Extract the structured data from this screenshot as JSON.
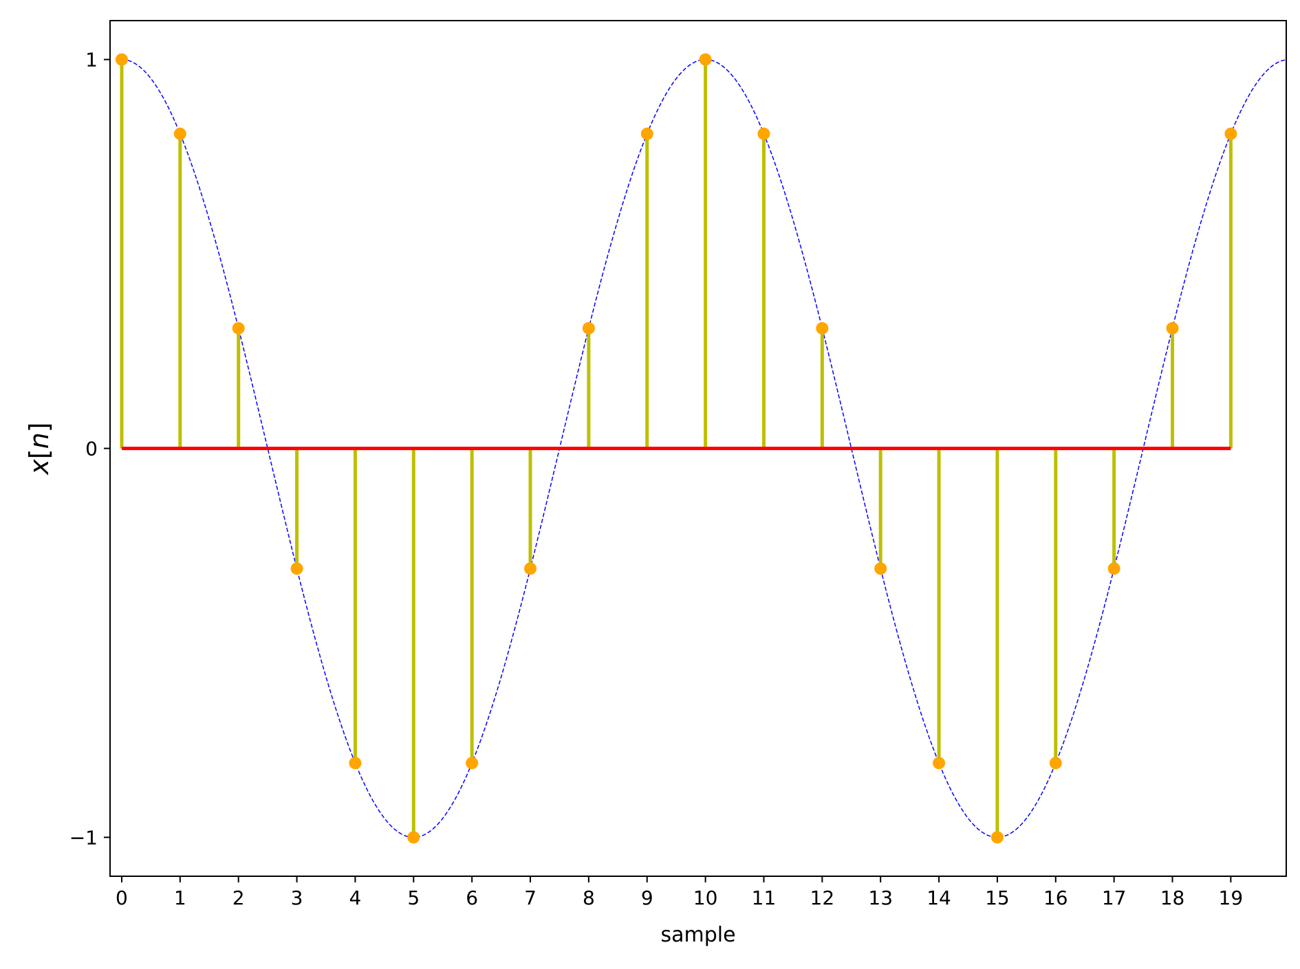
{
  "chart_data": {
    "type": "stem",
    "title": "",
    "xlabel": "sample",
    "ylabel": "x[n]",
    "xlim": [
      -0.2,
      19.95
    ],
    "ylim": [
      -1.1,
      1.1
    ],
    "xticks": [
      0,
      1,
      2,
      3,
      4,
      5,
      6,
      7,
      8,
      9,
      10,
      11,
      12,
      13,
      14,
      15,
      16,
      17,
      18,
      19
    ],
    "yticks": [
      -1,
      0,
      1
    ],
    "ytick_labels": [
      "−1",
      "0",
      "1"
    ],
    "grid": false,
    "series": [
      {
        "kind": "stem",
        "x": [
          0,
          1,
          2,
          3,
          4,
          5,
          6,
          7,
          8,
          9,
          10,
          11,
          12,
          13,
          14,
          15,
          16,
          17,
          18,
          19
        ],
        "values": [
          1.0,
          0.809,
          0.309,
          -0.309,
          -0.809,
          -1.0,
          -0.809,
          -0.309,
          0.309,
          0.809,
          1.0,
          0.809,
          0.309,
          -0.309,
          -0.809,
          -1.0,
          -0.809,
          -0.309,
          0.309,
          0.809
        ],
        "stem_color": "#bfbf00",
        "marker_color": "#ffa500",
        "baseline_color": "#ff0000"
      },
      {
        "kind": "line",
        "function": "cos(2*pi*x/10)",
        "x_range": [
          0,
          19.95
        ],
        "style": "dashed",
        "color": "#0000ff"
      }
    ]
  }
}
